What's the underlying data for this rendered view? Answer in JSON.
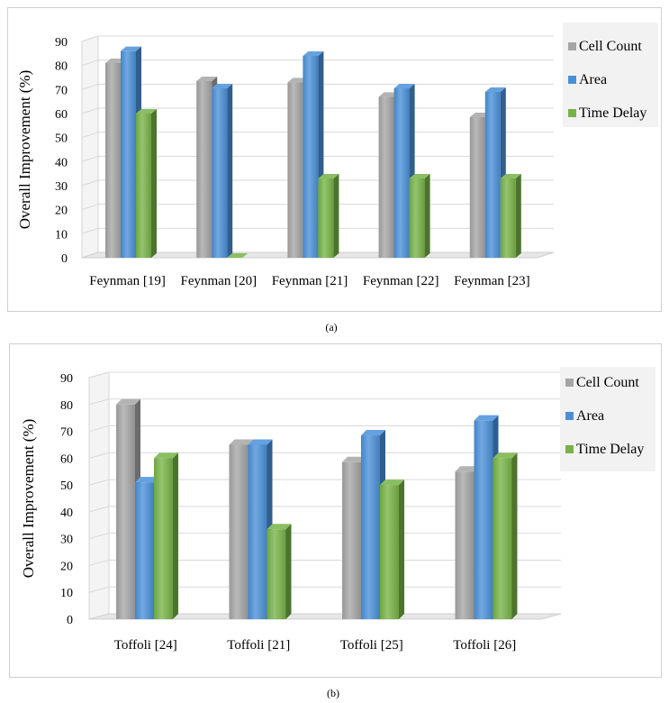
{
  "chart_data": [
    {
      "type": "bar",
      "categories": [
        "Feynman [19]",
        "Feynman [20]",
        "Feynman [21]",
        "Feynman [22]",
        "Feynman [23]"
      ],
      "series": [
        {
          "name": "Cell Count",
          "values": [
            81,
            73.5,
            73,
            67,
            58.5
          ]
        },
        {
          "name": "Area",
          "values": [
            86,
            70.5,
            84,
            70.5,
            69
          ]
        },
        {
          "name": "Time Delay",
          "values": [
            60,
            0,
            33,
            33,
            33
          ]
        }
      ],
      "ylabel": "Overall Improvement (%)",
      "xlabel": "",
      "ylim": [
        0,
        90
      ],
      "yticks": [
        "0",
        "10",
        "20",
        "30",
        "40",
        "50",
        "60",
        "70",
        "80",
        "90"
      ],
      "grid": true,
      "legend_position": "right",
      "caption": "(a)"
    },
    {
      "type": "bar",
      "categories": [
        "Toffoli [24]",
        "Toffoli [21]",
        "Toffoli [25]",
        "Toffoli [26]"
      ],
      "series": [
        {
          "name": "Cell Count",
          "values": [
            80,
            65,
            58.5,
            55
          ]
        },
        {
          "name": "Area",
          "values": [
            51,
            65,
            68.5,
            74
          ]
        },
        {
          "name": "Time Delay",
          "values": [
            60,
            33.5,
            50,
            60
          ]
        }
      ],
      "ylabel": "Overall Improvement (%)",
      "xlabel": "",
      "ylim": [
        0,
        90
      ],
      "yticks": [
        "0",
        "10",
        "20",
        "30",
        "40",
        "50",
        "60",
        "70",
        "80",
        "90"
      ],
      "grid": true,
      "legend_position": "right",
      "caption": "(b)"
    }
  ],
  "colors": {
    "cell_count": "#a5a5a5",
    "area": "#4a90d9",
    "time_delay": "#77b347"
  }
}
